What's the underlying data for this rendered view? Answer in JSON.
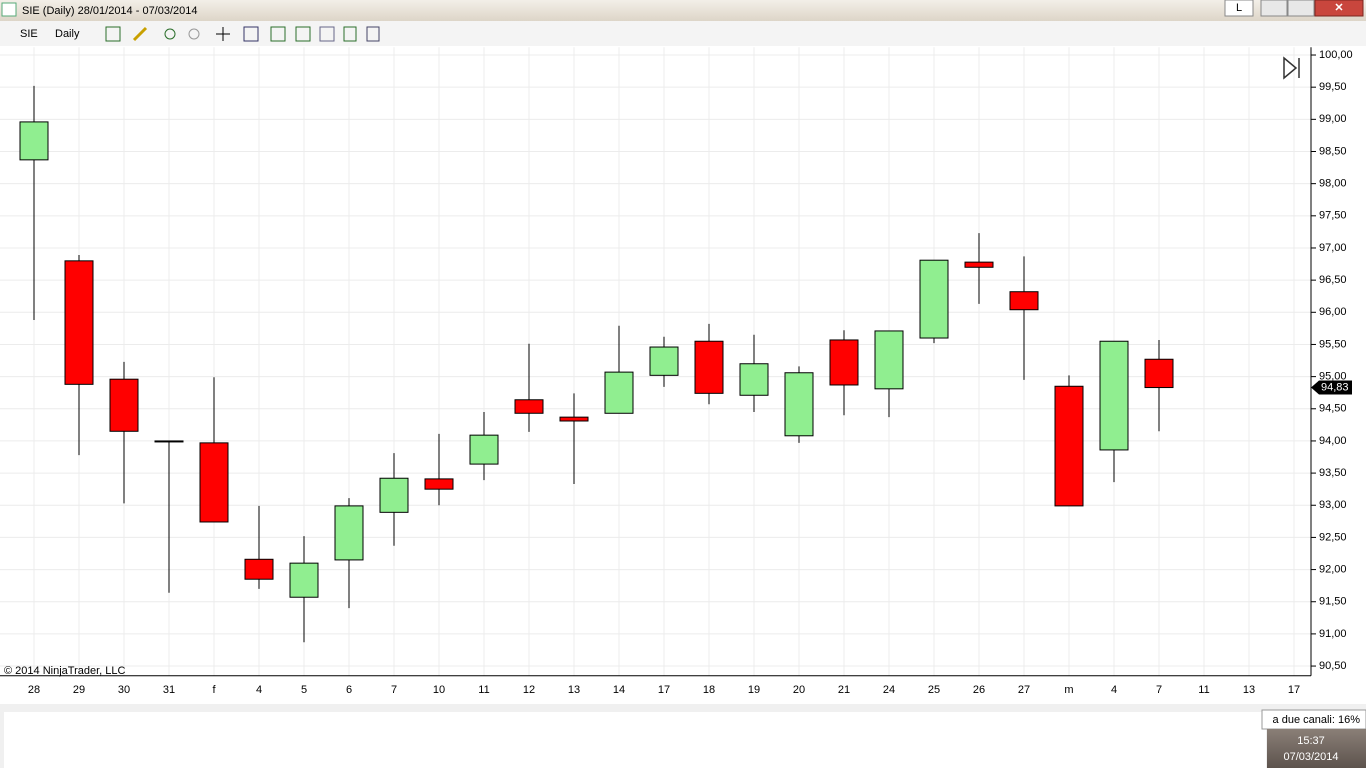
{
  "window": {
    "title": "SIE (Daily)  28/01/2014 - 07/03/2014",
    "button": "L"
  },
  "toolbar": {
    "instrument": "SIE",
    "period": "Daily"
  },
  "taskbar": {
    "notice": "a due canali: 16%",
    "time": "15:37",
    "date": "07/03/2014"
  },
  "chart_data": {
    "type": "candlestick",
    "copyright": "© 2014 NinjaTrader, LLC",
    "categories": [
      "28",
      "29",
      "30",
      "31",
      "f",
      "4",
      "5",
      "6",
      "7",
      "10",
      "11",
      "12",
      "13",
      "14",
      "17",
      "18",
      "19",
      "20",
      "21",
      "24",
      "25",
      "26",
      "27",
      "m",
      "4",
      "7",
      "11",
      "13",
      "17"
    ],
    "open": [
      98.37,
      96.8,
      94.96,
      94.0,
      93.97,
      92.16,
      91.57,
      92.15,
      92.89,
      93.41,
      93.64,
      94.64,
      94.37,
      94.43,
      95.02,
      95.55,
      94.71,
      94.08,
      95.57,
      94.81,
      95.6,
      96.78,
      96.32,
      94.85,
      93.86,
      95.27,
      null,
      null,
      null
    ],
    "high": [
      99.52,
      96.89,
      95.23,
      94.0,
      94.99,
      92.99,
      92.52,
      93.11,
      93.81,
      94.11,
      94.45,
      95.51,
      94.74,
      95.79,
      95.62,
      95.82,
      95.65,
      95.16,
      95.72,
      95.71,
      96.81,
      97.23,
      96.87,
      95.02,
      95.55,
      95.57,
      null,
      null,
      null
    ],
    "low": [
      95.88,
      93.78,
      93.03,
      91.64,
      92.74,
      91.7,
      90.87,
      91.4,
      92.37,
      93.0,
      93.39,
      94.14,
      93.33,
      94.43,
      94.84,
      94.57,
      94.45,
      93.97,
      94.4,
      94.37,
      95.52,
      96.13,
      94.95,
      92.99,
      93.36,
      94.15,
      null,
      null,
      null
    ],
    "close": [
      98.96,
      94.88,
      94.15,
      94.0,
      92.74,
      91.85,
      92.1,
      92.99,
      93.42,
      93.25,
      94.09,
      94.43,
      94.31,
      95.07,
      95.46,
      94.74,
      95.2,
      95.06,
      94.87,
      95.71,
      96.81,
      96.7,
      96.04,
      92.99,
      95.55,
      94.83,
      null,
      null,
      null
    ],
    "up_color": "#90ee90",
    "down_color": "#ff0000",
    "last_price": {
      "value": 94.83,
      "label": "94,83"
    },
    "ylim": [
      90.35,
      100.12
    ],
    "yticks": [
      {
        "value": 90.5,
        "label": "90,50"
      },
      {
        "value": 91,
        "label": "91,00"
      },
      {
        "value": 91.5,
        "label": "91,50"
      },
      {
        "value": 92,
        "label": "92,00"
      },
      {
        "value": 92.5,
        "label": "92,50"
      },
      {
        "value": 93,
        "label": "93,00"
      },
      {
        "value": 93.5,
        "label": "93,50"
      },
      {
        "value": 94,
        "label": "94,00"
      },
      {
        "value": 94.5,
        "label": "94,50"
      },
      {
        "value": 95,
        "label": "95,00"
      },
      {
        "value": 95.5,
        "label": "95,50"
      },
      {
        "value": 96,
        "label": "96,00"
      },
      {
        "value": 96.5,
        "label": "96,50"
      },
      {
        "value": 97,
        "label": "97,00"
      },
      {
        "value": 97.5,
        "label": "97,50"
      },
      {
        "value": 98,
        "label": "98,00"
      },
      {
        "value": 98.5,
        "label": "98,50"
      },
      {
        "value": 99,
        "label": "99,00"
      },
      {
        "value": 99.5,
        "label": "99,50"
      },
      {
        "value": 100,
        "label": "100,00"
      }
    ],
    "grid": true
  }
}
